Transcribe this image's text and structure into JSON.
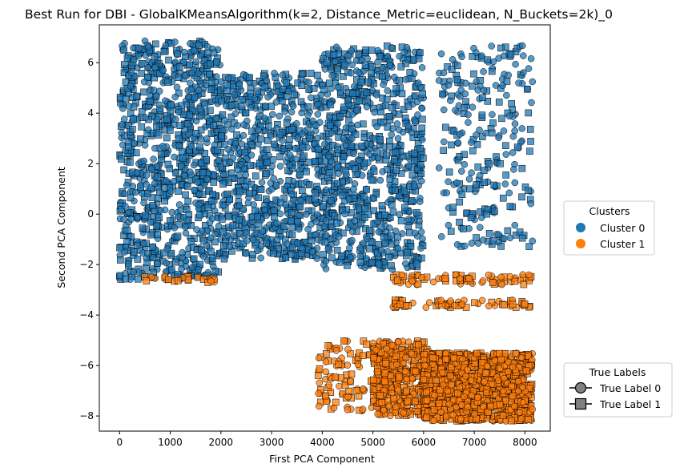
{
  "chart_data": {
    "type": "scatter",
    "title": "Best Run for DBI - GlobalKMeansAlgorithm(k=2, Distance_Metric=euclidean, N_Buckets=2k)_0",
    "xlabel": "First PCA Component",
    "ylabel": "Second PCA Component",
    "xlim": [
      -400,
      8500
    ],
    "ylim": [
      -8.6,
      7.5
    ],
    "xticks": [
      0,
      1000,
      2000,
      3000,
      4000,
      5000,
      6000,
      7000,
      8000
    ],
    "xtick_labels": [
      "0",
      "1000",
      "2000",
      "3000",
      "4000",
      "5000",
      "6000",
      "7000",
      "8000"
    ],
    "yticks": [
      -8,
      -6,
      -4,
      -2,
      0,
      2,
      4,
      6
    ],
    "ytick_labels": [
      "−8",
      "−6",
      "−4",
      "−2",
      "0",
      "2",
      "4",
      "6"
    ],
    "grid": false,
    "colors": {
      "cluster_0": "#1f77b4",
      "cluster_1": "#ff7f0e",
      "marker_edge": "#000000",
      "legend_marker": "#808080"
    },
    "legends": [
      {
        "title": "Clusters",
        "placement": "center-right",
        "entries": [
          "Cluster 0",
          "Cluster 1"
        ]
      },
      {
        "title": "True Labels",
        "placement": "lower-right",
        "entries": [
          "True Label 0",
          "True Label 1"
        ]
      }
    ],
    "marker_encoding": {
      "True Label 0": "circle",
      "True Label 1": "square"
    },
    "regions": [
      {
        "cluster": 0,
        "x": [
          0,
          2000
        ],
        "y": [
          -2.6,
          6.9
        ],
        "density": 900,
        "marker": "mixed"
      },
      {
        "cluster": 0,
        "x": [
          2000,
          4000
        ],
        "y": [
          -1.8,
          5.6
        ],
        "density": 700,
        "marker": "mixed"
      },
      {
        "cluster": 0,
        "x": [
          4000,
          6000
        ],
        "y": [
          -2.2,
          6.7
        ],
        "density": 800,
        "marker": "mixed"
      },
      {
        "cluster": 0,
        "x": [
          6300,
          8150
        ],
        "y": [
          -1.3,
          6.7
        ],
        "density": 260,
        "marker": "mixed"
      },
      {
        "cluster": 1,
        "x": [
          400,
          1900
        ],
        "y": [
          -2.75,
          -2.45
        ],
        "density": 25,
        "marker": "mixed"
      },
      {
        "cluster": 1,
        "x": [
          5400,
          8150
        ],
        "y": [
          -2.8,
          -2.4
        ],
        "density": 70,
        "marker": "mixed"
      },
      {
        "cluster": 1,
        "x": [
          5400,
          8150
        ],
        "y": [
          -3.7,
          -3.4
        ],
        "density": 60,
        "marker": "mixed"
      },
      {
        "cluster": 1,
        "x": [
          3900,
          5400
        ],
        "y": [
          -7.8,
          -5.0
        ],
        "density": 120,
        "marker": "mixed"
      },
      {
        "cluster": 1,
        "x": [
          5000,
          6100
        ],
        "y": [
          -8.0,
          -5.0
        ],
        "density": 350,
        "marker": "mixed"
      },
      {
        "cluster": 1,
        "x": [
          6000,
          8150
        ],
        "y": [
          -8.2,
          -5.5
        ],
        "density": 1100,
        "marker": "mixed"
      }
    ]
  }
}
